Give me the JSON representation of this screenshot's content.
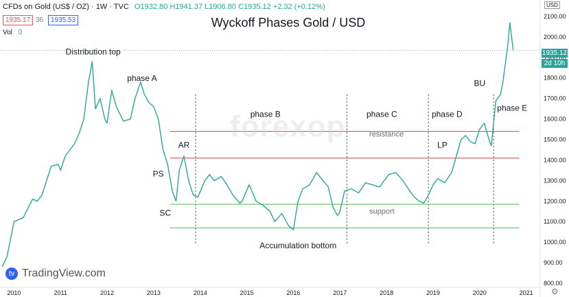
{
  "header": {
    "symbol_title": "CFDs on Gold (US$ / OZ) · 1W · TVC",
    "ohlc": "O1932.80 H1941.37 L1906.80 C1935.12 +2.32 (+0.12%)",
    "bid": "1935.17",
    "spread": "36",
    "ask": "1935.53",
    "volume_label": "Vol",
    "volume_value": "0"
  },
  "currency_tag": "USD",
  "price_tag": "1935.12",
  "time_tag": "2d 10h",
  "watermark": "forexop",
  "branding": {
    "logo": "tradingview-logo-icon",
    "text": "TradingView.com"
  },
  "icons": {
    "settings": "gear-icon"
  },
  "colors": {
    "up": "#26a69a",
    "down": "#ef5350",
    "resistance": "#e05454",
    "support": "#5cc35c",
    "phase_divider": "#333333"
  },
  "chart_data": {
    "type": "line",
    "title": "Wyckoff Phases Gold / USD",
    "xlabel": "",
    "ylabel": "",
    "x_ticks": [
      "2010",
      "2011",
      "2012",
      "2013",
      "2014",
      "2015",
      "2016",
      "2017",
      "2018",
      "2019",
      "2020",
      "2021"
    ],
    "y_ticks": [
      800,
      900,
      1000,
      1100,
      1200,
      1300,
      1400,
      1500,
      1600,
      1700,
      1800,
      1900,
      2000,
      2100
    ],
    "y_range": [
      780,
      2180
    ],
    "x_range": [
      2009.7,
      2021.3
    ],
    "grid": false,
    "last_price_line": 1935.12,
    "series": [
      {
        "x": [
          2009.75,
          2009.85,
          2010.0,
          2010.2,
          2010.4,
          2010.5,
          2010.6,
          2010.8,
          2010.95,
          2011.0,
          2011.1,
          2011.3,
          2011.4,
          2011.5,
          2011.6,
          2011.68,
          2011.75,
          2011.85,
          2011.95,
          2012.0,
          2012.1,
          2012.2,
          2012.35,
          2012.5,
          2012.6,
          2012.72,
          2012.8,
          2012.9,
          2013.0,
          2013.1,
          2013.2,
          2013.3,
          2013.4,
          2013.48,
          2013.55,
          2013.65,
          2013.75,
          2013.85,
          2013.95,
          2014.1,
          2014.2,
          2014.3,
          2014.45,
          2014.55,
          2014.7,
          2014.85,
          2014.9,
          2015.05,
          2015.2,
          2015.35,
          2015.5,
          2015.6,
          2015.75,
          2015.9,
          2016.0,
          2016.1,
          2016.2,
          2016.35,
          2016.5,
          2016.6,
          2016.75,
          2016.85,
          2016.95,
          2017.0,
          2017.1,
          2017.25,
          2017.4,
          2017.55,
          2017.7,
          2017.85,
          2017.95,
          2018.05,
          2018.2,
          2018.35,
          2018.5,
          2018.6,
          2018.7,
          2018.8,
          2018.9,
          2019.0,
          2019.1,
          2019.25,
          2019.4,
          2019.5,
          2019.6,
          2019.7,
          2019.8,
          2019.9,
          2020.0,
          2020.1,
          2020.2,
          2020.25,
          2020.35,
          2020.45,
          2020.5,
          2020.6,
          2020.65,
          2020.72
        ],
        "values": [
          880,
          930,
          1100,
          1120,
          1210,
          1200,
          1230,
          1370,
          1380,
          1350,
          1420,
          1480,
          1530,
          1600,
          1780,
          1880,
          1650,
          1700,
          1600,
          1580,
          1740,
          1660,
          1590,
          1600,
          1700,
          1780,
          1720,
          1680,
          1660,
          1600,
          1450,
          1380,
          1250,
          1200,
          1350,
          1420,
          1300,
          1230,
          1220,
          1300,
          1330,
          1300,
          1320,
          1290,
          1230,
          1190,
          1200,
          1280,
          1200,
          1180,
          1150,
          1100,
          1140,
          1080,
          1060,
          1200,
          1260,
          1280,
          1340,
          1310,
          1270,
          1170,
          1130,
          1150,
          1250,
          1260,
          1240,
          1290,
          1280,
          1270,
          1300,
          1330,
          1340,
          1300,
          1250,
          1220,
          1200,
          1190,
          1230,
          1280,
          1310,
          1290,
          1340,
          1420,
          1500,
          1520,
          1490,
          1480,
          1550,
          1580,
          1500,
          1470,
          1690,
          1720,
          1780,
          1950,
          2070,
          1935
        ]
      }
    ],
    "levels": [
      {
        "name": "resistance-top",
        "value": 1540
      },
      {
        "name": "resistance",
        "value": 1410
      },
      {
        "name": "support",
        "value": 1185
      },
      {
        "name": "support-bottom",
        "value": 1070
      }
    ],
    "phase_dividers": [
      2013.9,
      2017.15,
      2018.9,
      2020.3
    ],
    "annotations": [
      {
        "text": "Distribution top",
        "x": 2011.7,
        "y": 1915
      },
      {
        "text": "phase A",
        "x": 2012.75,
        "y": 1785
      },
      {
        "text": "phase B",
        "x": 2015.4,
        "y": 1610
      },
      {
        "text": "phase C",
        "x": 2017.9,
        "y": 1610
      },
      {
        "text": "phase D",
        "x": 2019.3,
        "y": 1610
      },
      {
        "text": "phase E",
        "x": 2020.7,
        "y": 1640
      },
      {
        "text": "BU",
        "x": 2020.0,
        "y": 1760
      },
      {
        "text": "AR",
        "x": 2013.65,
        "y": 1460
      },
      {
        "text": "PS",
        "x": 2013.1,
        "y": 1320
      },
      {
        "text": "SC",
        "x": 2013.25,
        "y": 1130
      },
      {
        "text": "LP",
        "x": 2019.2,
        "y": 1460
      },
      {
        "text": "resistance",
        "x": 2018.0,
        "y": 1515
      },
      {
        "text": "support",
        "x": 2017.9,
        "y": 1140
      },
      {
        "text": "Accumulation bottom",
        "x": 2016.1,
        "y": 970
      }
    ]
  }
}
